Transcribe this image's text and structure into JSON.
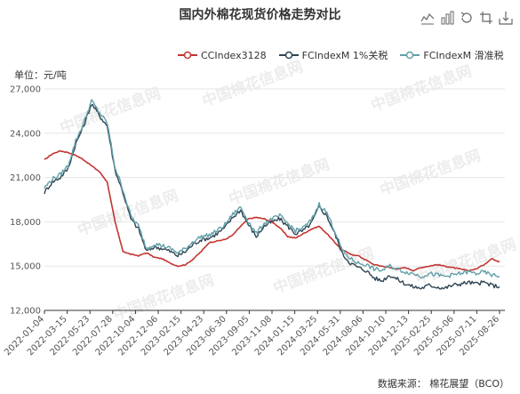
{
  "header": {
    "title": "国内外棉花现货价格走势对比",
    "unit": "单位：元/吨",
    "source": "数据来源：  棉花展望（BCO）"
  },
  "toolbar": [
    "line-chart-icon",
    "bar-chart-icon",
    "restore-icon",
    "crop-icon",
    "save-icon"
  ],
  "legend": [
    {
      "name": "CCIndex3128",
      "color": "#c23531"
    },
    {
      "name": "FCIndexM 1%关税",
      "color": "#2f4554"
    },
    {
      "name": "FCIndexM 滑准税",
      "color": "#61a0a8"
    }
  ],
  "watermark": "中国棉花信息网",
  "chart_data": {
    "type": "line",
    "title": "国内外棉花现货价格走势对比",
    "ylabel": "元/吨",
    "ylim": [
      12000,
      27000
    ],
    "yticks": [
      12000,
      15000,
      18000,
      21000,
      24000,
      27000
    ],
    "ytick_labels": [
      "12,000",
      "15,000",
      "18,000",
      "21,000",
      "24,000",
      "27,000"
    ],
    "x_tick_labels": [
      "2022-01-04",
      "2022-03-15",
      "2022-05-23",
      "2022-07-28",
      "2022-10-04",
      "2022-12-06",
      "2023-02-15",
      "2023-04-23",
      "2023-06-30",
      "2023-09-05",
      "2023-11-08",
      "2024-01-15",
      "2024-03-25",
      "2024-05-31",
      "2024-08-06",
      "2024-10-10",
      "2024-12-13",
      "2025-02-25",
      "2025-05-06",
      "2025-07-11",
      "2025-08-26"
    ],
    "grid": true,
    "legend_position": "top-right",
    "series": [
      {
        "name": "CCIndex3128",
        "color": "#c23531",
        "values": [
          22200,
          22600,
          22800,
          22700,
          22500,
          22200,
          21800,
          21400,
          20700,
          18000,
          16000,
          15800,
          15700,
          15900,
          15600,
          15500,
          15200,
          15000,
          15100,
          15500,
          16000,
          16600,
          16700,
          16800,
          17100,
          17700,
          18200,
          18300,
          18200,
          18000,
          17600,
          17000,
          16900,
          17200,
          17500,
          17700,
          17200,
          16600,
          16100,
          15800,
          15700,
          15400,
          15100,
          15000,
          14900,
          14800,
          14900,
          14700,
          14900,
          15000,
          15100,
          15000,
          14900,
          14800,
          14700,
          14800,
          15100,
          15500,
          15300
        ]
      },
      {
        "name": "FCIndexM 1%关税",
        "color": "#2f4554",
        "values": [
          20000,
          20700,
          21000,
          21600,
          23300,
          24500,
          26000,
          25200,
          24500,
          21500,
          20000,
          18200,
          17500,
          16000,
          16300,
          16200,
          16000,
          15700,
          16000,
          16500,
          16800,
          16900,
          17200,
          17600,
          18300,
          18800,
          17800,
          17000,
          17700,
          18000,
          18200,
          17700,
          17200,
          17400,
          17900,
          19000,
          18400,
          17200,
          15800,
          15200,
          14900,
          14700,
          14200,
          14000,
          14400,
          14100,
          13800,
          13600,
          13500,
          13700,
          13600,
          13500,
          13700,
          13800,
          13900,
          13800,
          13900,
          13700,
          13600
        ]
      },
      {
        "name": "FCIndexM 滑准税",
        "color": "#61a0a8",
        "values": [
          20300,
          20900,
          21200,
          21800,
          23500,
          24700,
          26200,
          25400,
          24700,
          21700,
          20200,
          18400,
          17700,
          16200,
          16500,
          16400,
          16200,
          15900,
          16200,
          16700,
          17000,
          17100,
          17400,
          17800,
          18500,
          19000,
          18000,
          17200,
          17900,
          18200,
          18400,
          17900,
          17400,
          17600,
          18100,
          19200,
          18600,
          17400,
          16000,
          15500,
          15200,
          15100,
          14800,
          14700,
          15000,
          14800,
          14600,
          14500,
          14300,
          14500,
          14400,
          14300,
          14400,
          14500,
          14600,
          14500,
          14600,
          14400,
          14300
        ]
      }
    ]
  }
}
